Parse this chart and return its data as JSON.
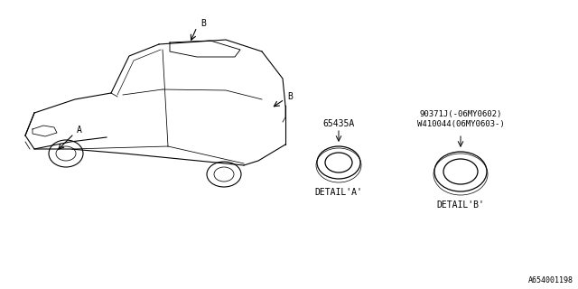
{
  "bg_color": "#ffffff",
  "line_color": "#000000",
  "text_color": "#000000",
  "title": "",
  "footer_text": "A654001198",
  "part_a_label": "65435A",
  "part_b_label": "90371J(-06MY0602)\nW410044(06MY0603-)",
  "detail_a_text": "DETAIL'A'",
  "detail_b_text": "DETAIL'B'",
  "label_a": "A",
  "label_b": "B",
  "fig_width": 6.4,
  "fig_height": 3.2,
  "dpi": 100
}
